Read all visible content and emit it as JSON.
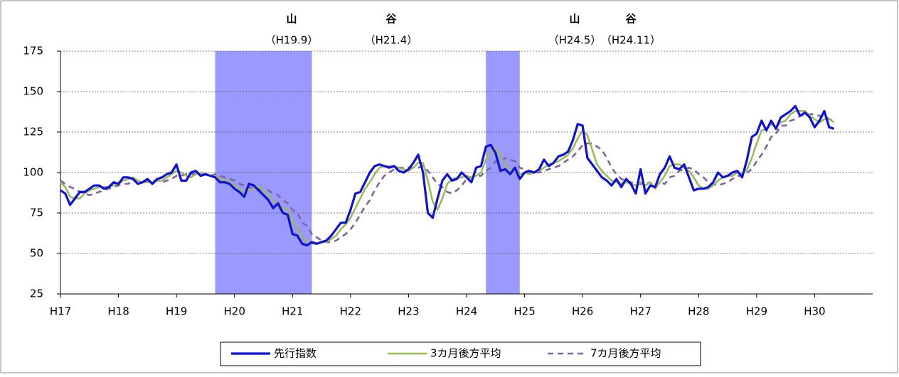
{
  "chart_data": {
    "type": "line",
    "annotations": [
      {
        "label": "山",
        "date": "（H19.9）"
      },
      {
        "label": "谷",
        "date": "（H21.4）"
      },
      {
        "label": "山",
        "date": "（H24.5）"
      },
      {
        "label": "谷",
        "date": "（H24.11）"
      }
    ],
    "shaded_periods": [
      {
        "start": 32,
        "end": 52
      },
      {
        "start": 88,
        "end": 95
      }
    ],
    "shade_color": "#9999ff",
    "xlim": [
      0,
      168
    ],
    "xticks": [
      {
        "value": 0,
        "label": "H17"
      },
      {
        "value": 12,
        "label": "H18"
      },
      {
        "value": 24,
        "label": "H19"
      },
      {
        "value": 36,
        "label": "H20"
      },
      {
        "value": 48,
        "label": "H21"
      },
      {
        "value": 60,
        "label": "H22"
      },
      {
        "value": 72,
        "label": "H23"
      },
      {
        "value": 84,
        "label": "H24"
      },
      {
        "value": 96,
        "label": "H25"
      },
      {
        "value": 108,
        "label": "H26"
      },
      {
        "value": 120,
        "label": "H27"
      },
      {
        "value": 132,
        "label": "H28"
      },
      {
        "value": 144,
        "label": "H29"
      },
      {
        "value": 156,
        "label": "H30"
      }
    ],
    "ylim": [
      25,
      175
    ],
    "yticks": [
      25,
      50,
      75,
      100,
      125,
      150,
      175
    ],
    "grid": true,
    "legend": "bottom",
    "x": [
      0,
      1,
      2,
      3,
      4,
      5,
      6,
      7,
      8,
      9,
      10,
      11,
      12,
      13,
      14,
      15,
      16,
      17,
      18,
      19,
      20,
      21,
      22,
      23,
      24,
      25,
      26,
      27,
      28,
      29,
      30,
      31,
      32,
      33,
      34,
      35,
      36,
      37,
      38,
      39,
      40,
      41,
      42,
      43,
      44,
      45,
      46,
      47,
      48,
      49,
      50,
      51,
      52,
      53,
      54,
      55,
      56,
      57,
      58,
      59,
      60,
      61,
      62,
      63,
      64,
      65,
      66,
      67,
      68,
      69,
      70,
      71,
      72,
      73,
      74,
      75,
      76,
      77,
      78,
      79,
      80,
      81,
      82,
      83,
      84,
      85,
      86,
      87,
      88,
      89,
      90,
      91,
      92,
      93,
      94,
      95,
      96,
      97,
      98,
      99,
      100,
      101,
      102,
      103,
      104,
      105,
      106,
      107,
      108,
      109,
      110,
      111,
      112,
      113,
      114,
      115,
      116,
      117,
      118,
      119,
      120,
      121,
      122,
      123,
      124,
      125,
      126,
      127,
      128,
      129,
      130,
      131,
      132,
      133,
      134,
      135,
      136,
      137,
      138,
      139,
      140,
      141,
      142,
      143,
      144,
      145,
      146,
      147,
      148,
      149,
      150,
      151,
      152,
      153,
      154,
      155,
      156,
      157,
      158,
      159,
      160
    ],
    "series": [
      {
        "name": "先行指数",
        "color": "#1010dd",
        "dash": false,
        "width": 3.2,
        "values": [
          89,
          87,
          80,
          84,
          88,
          88,
          90,
          92,
          92,
          90,
          91,
          94,
          93,
          97,
          97,
          96,
          93,
          94,
          96,
          93,
          96,
          97,
          99,
          100,
          105,
          95,
          95,
          100,
          101,
          98,
          99,
          98,
          97,
          94,
          94,
          93,
          90,
          88,
          85,
          93,
          92,
          89,
          86,
          83,
          78,
          81,
          75,
          74,
          62,
          61,
          56,
          55,
          57,
          56,
          57,
          58,
          61,
          65,
          69,
          69,
          77,
          87,
          88,
          94,
          100,
          104,
          105,
          104,
          103,
          104,
          101,
          100,
          102,
          106,
          111,
          100,
          75,
          72,
          84,
          95,
          99,
          95,
          96,
          100,
          97,
          94,
          103,
          104,
          116,
          117,
          112,
          101,
          102,
          99,
          103,
          96,
          100,
          101,
          100,
          102,
          108,
          104,
          106,
          110,
          111,
          113,
          120,
          130,
          129,
          109,
          105,
          101,
          97,
          95,
          92,
          96,
          91,
          96,
          93,
          87,
          102,
          87,
          92,
          91,
          99,
          103,
          110,
          103,
          102,
          105,
          97,
          89,
          90,
          90,
          91,
          94,
          100,
          97,
          98,
          100,
          101,
          97,
          108,
          122,
          124,
          132,
          126,
          132,
          127,
          134,
          136,
          138,
          141,
          135,
          137,
          134,
          128,
          132,
          138,
          128,
          127
        ]
      },
      {
        "name": "3カ月後方平均",
        "color": "#9bbb59",
        "dash": false,
        "width": 2.6,
        "values": [
          94,
          91,
          85,
          84,
          84,
          87,
          89,
          90,
          91,
          91,
          91,
          92,
          93,
          95,
          96,
          97,
          95,
          94,
          94,
          94,
          95,
          95,
          97,
          99,
          101,
          100,
          98,
          97,
          99,
          100,
          99,
          98,
          98,
          96,
          95,
          94,
          92,
          90,
          88,
          89,
          90,
          91,
          89,
          86,
          82,
          81,
          78,
          77,
          70,
          66,
          60,
          57,
          56,
          56,
          57,
          57,
          59,
          61,
          65,
          68,
          72,
          78,
          84,
          90,
          94,
          99,
          103,
          104,
          104,
          104,
          103,
          102,
          101,
          103,
          106,
          106,
          95,
          82,
          77,
          84,
          93,
          96,
          97,
          97,
          98,
          97,
          98,
          100,
          108,
          112,
          115,
          110,
          105,
          101,
          101,
          99,
          100,
          99,
          100,
          101,
          103,
          105,
          106,
          107,
          109,
          111,
          115,
          121,
          126,
          123,
          114,
          105,
          101,
          98,
          95,
          94,
          93,
          94,
          93,
          92,
          94,
          92,
          94,
          90,
          94,
          98,
          104,
          105,
          105,
          103,
          101,
          97,
          92,
          90,
          90,
          92,
          95,
          97,
          98,
          98,
          100,
          99,
          102,
          109,
          118,
          126,
          127,
          130,
          128,
          131,
          132,
          136,
          138,
          138,
          138,
          135,
          133,
          131,
          133,
          133,
          131
        ]
      },
      {
        "name": "7カ月後方平均",
        "color": "#8064a2",
        "dash": true,
        "width": 2.6,
        "values": [
          95,
          93,
          91,
          90,
          88,
          87,
          86,
          87,
          88,
          89,
          90,
          91,
          92,
          93,
          93,
          95,
          95,
          95,
          95,
          95,
          95,
          94,
          95,
          96,
          98,
          98,
          99,
          99,
          99,
          99,
          99,
          98,
          99,
          98,
          97,
          96,
          95,
          93,
          92,
          91,
          90,
          90,
          89,
          89,
          87,
          86,
          83,
          81,
          77,
          75,
          69,
          67,
          62,
          60,
          58,
          57,
          57,
          58,
          60,
          62,
          65,
          69,
          74,
          79,
          83,
          89,
          94,
          98,
          100,
          102,
          103,
          103,
          103,
          103,
          103,
          104,
          101,
          97,
          93,
          91,
          88,
          87,
          89,
          92,
          96,
          97,
          98,
          98,
          101,
          103,
          107,
          107,
          109,
          108,
          107,
          103,
          102,
          100,
          100,
          100,
          101,
          102,
          103,
          104,
          106,
          108,
          110,
          113,
          117,
          118,
          118,
          116,
          114,
          109,
          103,
          99,
          96,
          95,
          94,
          93,
          93,
          93,
          94,
          91,
          94,
          93,
          97,
          98,
          101,
          102,
          103,
          102,
          99,
          97,
          94,
          93,
          92,
          93,
          94,
          96,
          98,
          98,
          100,
          102,
          107,
          111,
          116,
          122,
          124,
          129,
          129,
          132,
          133,
          135,
          136,
          136,
          136,
          135,
          135,
          133,
          132
        ]
      }
    ]
  }
}
